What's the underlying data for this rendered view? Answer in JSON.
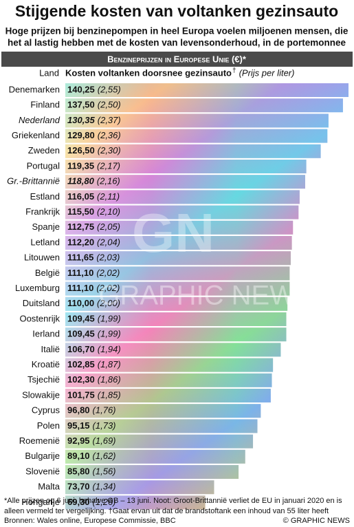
{
  "chart_data": {
    "type": "bar",
    "title": "Stijgende kosten van voltanken gezinsauto",
    "subtitle": [
      "Hoge prijzen bij benzinepompen in heel Europa voelen miljoenen mensen, die",
      "het al lastig hebben met de kosten van levensonderhoud, in de portemonnee"
    ],
    "banner": "Benzineprijzen in Europese Unie (€)*",
    "category_header": "Land",
    "header_mark": "†",
    "watermark": [
      "GN",
      "GRAPHIC NEWS"
    ],
    "categories": [
      "Denemarken",
      "Finland",
      "Nederland",
      "Griekenland",
      "Zweden",
      "Portugal",
      "Gr.-Brittannië",
      "Estland",
      "Frankrijk",
      "Spanje",
      "Letland",
      "Litouwen",
      "België",
      "Luxemburg",
      "Duitsland",
      "Oostenrijk",
      "Ierland",
      "Italië",
      "Kroatië",
      "Tsjechië",
      "Slowakije",
      "Cyprus",
      "Polen",
      "Roemenië",
      "Bulgarije",
      "Slovenië",
      "Malta",
      "Hongarije"
    ],
    "italic_categories": [
      2,
      6
    ],
    "series": [
      {
        "name": "Kosten voltanken doorsnee gezinsauto",
        "values": [
          140.25,
          137.5,
          130.35,
          129.8,
          126.5,
          119.35,
          118.8,
          116.05,
          115.5,
          112.75,
          112.2,
          111.65,
          111.1,
          111.1,
          110.0,
          109.45,
          109.45,
          106.7,
          102.85,
          102.3,
          101.75,
          96.8,
          95.15,
          92.95,
          89.1,
          85.8,
          73.7,
          69.3
        ],
        "value_labels": [
          "140,25",
          "137,50",
          "130,35",
          "129,80",
          "126,50",
          "119,35",
          "118,80",
          "116,05",
          "115,50",
          "112,75",
          "112,20",
          "111,65",
          "111,10",
          "111,10",
          "110,00",
          "109,45",
          "109,45",
          "106,70",
          "102,85",
          "102,30",
          "101,75",
          "96,80",
          "95,15",
          "92,95",
          "89,10",
          "85,80",
          "73,70",
          "69,30"
        ]
      },
      {
        "name": "(Prijs per liter)",
        "values": [
          2.55,
          2.5,
          2.37,
          2.36,
          2.3,
          2.17,
          2.16,
          2.11,
          2.1,
          2.05,
          2.04,
          2.03,
          2.02,
          2.02,
          2.0,
          1.99,
          1.99,
          1.94,
          1.87,
          1.86,
          1.85,
          1.76,
          1.73,
          1.69,
          1.62,
          1.56,
          1.34,
          1.26
        ],
        "value_labels": [
          "(2,55)",
          "(2,50)",
          "(2,37)",
          "(2,36)",
          "(2,30)",
          "(2,17)",
          "(2,16)",
          "(2,11)",
          "(2,10)",
          "(2,05)",
          "(2,04)",
          "(2,03)",
          "(2,02)",
          "(2,02)",
          "(2,00)",
          "(1,99)",
          "(1,99)",
          "(1,94)",
          "(1,87)",
          "(1,86)",
          "(1,85)",
          "(1,76)",
          "(1,73)",
          "(1,69)",
          "(1,62)",
          "(1,56)",
          "(1,34)",
          "(1,26)"
        ]
      }
    ],
    "footnote": [
      "*Alle prijzen op 6 juni, behalve GB – 13 juni. Noot: Groot-Brittannië verliet de EU in januari 2020 en is",
      "alleen vermeld ter vergelijking. †Gaat ervan uit dat de brandstoftank een inhoud van 55 liter heeft"
    ],
    "source": "Bronnen: Wales online, Europese Commissie, BBC",
    "credit": "© GRAPHIC NEWS"
  }
}
